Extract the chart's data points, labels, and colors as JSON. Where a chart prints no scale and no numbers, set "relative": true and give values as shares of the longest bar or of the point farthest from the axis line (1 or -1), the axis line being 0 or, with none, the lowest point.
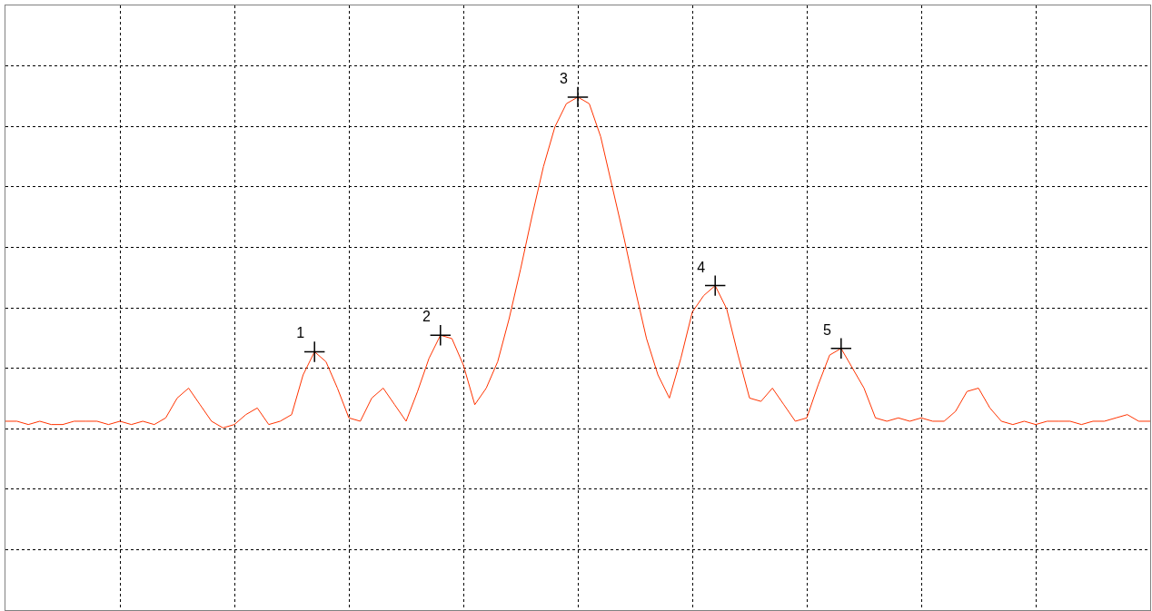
{
  "chart_data": {
    "type": "line",
    "relative": true,
    "grid": true,
    "tick_labels": false,
    "marker": "none",
    "categories": [
      null,
      null,
      null,
      null,
      null,
      null,
      null,
      null,
      null,
      null,
      null,
      null,
      null,
      null,
      null,
      null,
      null,
      null,
      null,
      null,
      null,
      null,
      null,
      null,
      null,
      null,
      null,
      null,
      null,
      null,
      null,
      null,
      null,
      null,
      null,
      null,
      null,
      null,
      null,
      null,
      null,
      null,
      null,
      null,
      null,
      null,
      null,
      null,
      null,
      null,
      null,
      null,
      null,
      null,
      null,
      null,
      null,
      null,
      null,
      null,
      null,
      null,
      null,
      null,
      null,
      null,
      null,
      null,
      null,
      null,
      null,
      null,
      null,
      null,
      null,
      null,
      null,
      null,
      null,
      null,
      null,
      null,
      null,
      null,
      null,
      null,
      null,
      null,
      null,
      null,
      null,
      null,
      null,
      null,
      null,
      null,
      null,
      null,
      null,
      null,
      null
    ],
    "series": [
      {
        "color": "#ff3300",
        "values": [
          0.02,
          0.02,
          0.01,
          0.02,
          0.01,
          0.01,
          0.02,
          0.02,
          0.02,
          0.01,
          0.02,
          0.01,
          0.02,
          0.01,
          0.03,
          0.09,
          0.12,
          0.07,
          0.02,
          0,
          0.01,
          0.04,
          0.06,
          0.01,
          0.02,
          0.04,
          0.16,
          0.23,
          0.2,
          0.12,
          0.03,
          0.02,
          0.09,
          0.12,
          0.07,
          0.02,
          0.11,
          0.21,
          0.28,
          0.27,
          0.19,
          0.07,
          0.12,
          0.2,
          0.33,
          0.48,
          0.64,
          0.79,
          0.91,
          0.98,
          1,
          0.98,
          0.88,
          0.73,
          0.58,
          0.42,
          0.27,
          0.16,
          0.09,
          0.21,
          0.35,
          0.4,
          0.43,
          0.36,
          0.22,
          0.09,
          0.08,
          0.12,
          0.07,
          0.02,
          0.03,
          0.13,
          0.22,
          0.24,
          0.18,
          0.12,
          0.03,
          0.02,
          0.03,
          0.02,
          0.03,
          0.02,
          0.02,
          0.05,
          0.11,
          0.12,
          0.06,
          0.02,
          0.01,
          0.02,
          0.01,
          0.02,
          0.02,
          0.02,
          0.01,
          0.02,
          0.02,
          0.03,
          0.04,
          0.02,
          0.02
        ]
      }
    ],
    "annotations": [
      "1",
      "2",
      "3",
      "4",
      "5"
    ]
  }
}
